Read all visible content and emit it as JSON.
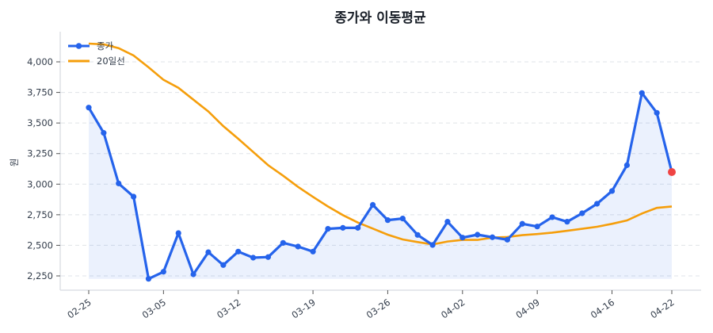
{
  "chart_data": {
    "type": "line",
    "title": "종가와 이동평균",
    "xlabel": "",
    "ylabel": "원",
    "ylim": [
      2180,
      4270
    ],
    "yticks": [
      2250,
      2500,
      2750,
      3000,
      3250,
      3500,
      3750,
      4000
    ],
    "ytick_labels": [
      "2,250",
      "2,500",
      "2,750",
      "3,000",
      "3,250",
      "3,500",
      "3,750",
      "4,000"
    ],
    "xtick_index": [
      0,
      5,
      10,
      15,
      20,
      25,
      30,
      35,
      39
    ],
    "xtick_labels": [
      "02-25",
      "03-05",
      "03-12",
      "03-19",
      "03-26",
      "04-02",
      "04-09",
      "04-16",
      "04-22"
    ],
    "grid": "horizontal dashed",
    "legend_position": "top-left",
    "series": [
      {
        "name": "종가",
        "color": "#2563eb",
        "markers": true,
        "fill_below": true,
        "last_point_color": "#ef4444",
        "values": [
          3626,
          3419,
          3006,
          2898,
          2226,
          2284,
          2600,
          2263,
          2444,
          2339,
          2449,
          2399,
          2404,
          2520,
          2490,
          2449,
          2635,
          2643,
          2643,
          2831,
          2706,
          2719,
          2585,
          2503,
          2693,
          2563,
          2587,
          2566,
          2546,
          2676,
          2654,
          2730,
          2693,
          2762,
          2840,
          2944,
          3155,
          3745,
          3583,
          3099
        ]
      },
      {
        "name": "20일선",
        "color": "#f59e0b",
        "markers": false,
        "values": [
          4149,
          4143,
          4112,
          4052,
          3955,
          3853,
          3788,
          3691,
          3594,
          3475,
          3371,
          3263,
          3155,
          3069,
          2978,
          2896,
          2818,
          2747,
          2686,
          2637,
          2587,
          2548,
          2527,
          2507,
          2531,
          2544,
          2544,
          2563,
          2568,
          2583,
          2592,
          2604,
          2619,
          2635,
          2652,
          2676,
          2704,
          2760,
          2806,
          2818
        ]
      }
    ]
  }
}
